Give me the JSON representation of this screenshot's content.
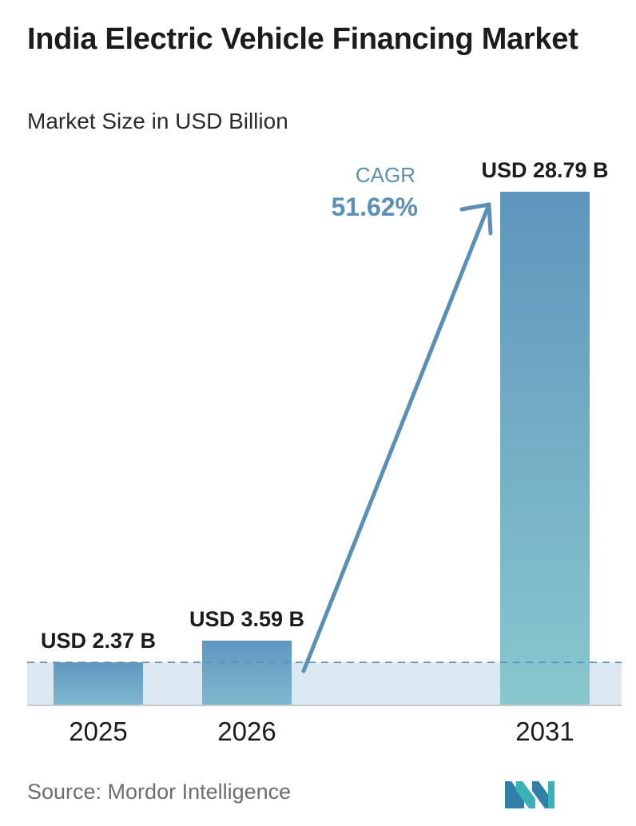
{
  "title": "India Electric Vehicle Financing Market",
  "subtitle": "Market Size in USD Billion",
  "source": "Source:  Mordor Intelligence",
  "colors": {
    "bar_top": "#5f95bd",
    "bar_bottom": "#88c8ce",
    "arrow": "#5a8fb6",
    "band": "#dbe7f1",
    "axis": "#c9c9c9",
    "dashed": "#5a8fb6"
  },
  "chart_data": {
    "type": "bar",
    "categories": [
      "2025",
      "2026",
      "2031"
    ],
    "values": [
      2.37,
      3.59,
      28.79
    ],
    "value_labels": [
      "USD 2.37 B",
      "USD 3.59 B",
      "USD 28.79 B"
    ],
    "cagr_label": "CAGR",
    "cagr_value": "51.62%",
    "ylim": [
      0,
      28.79
    ],
    "grid": false
  }
}
